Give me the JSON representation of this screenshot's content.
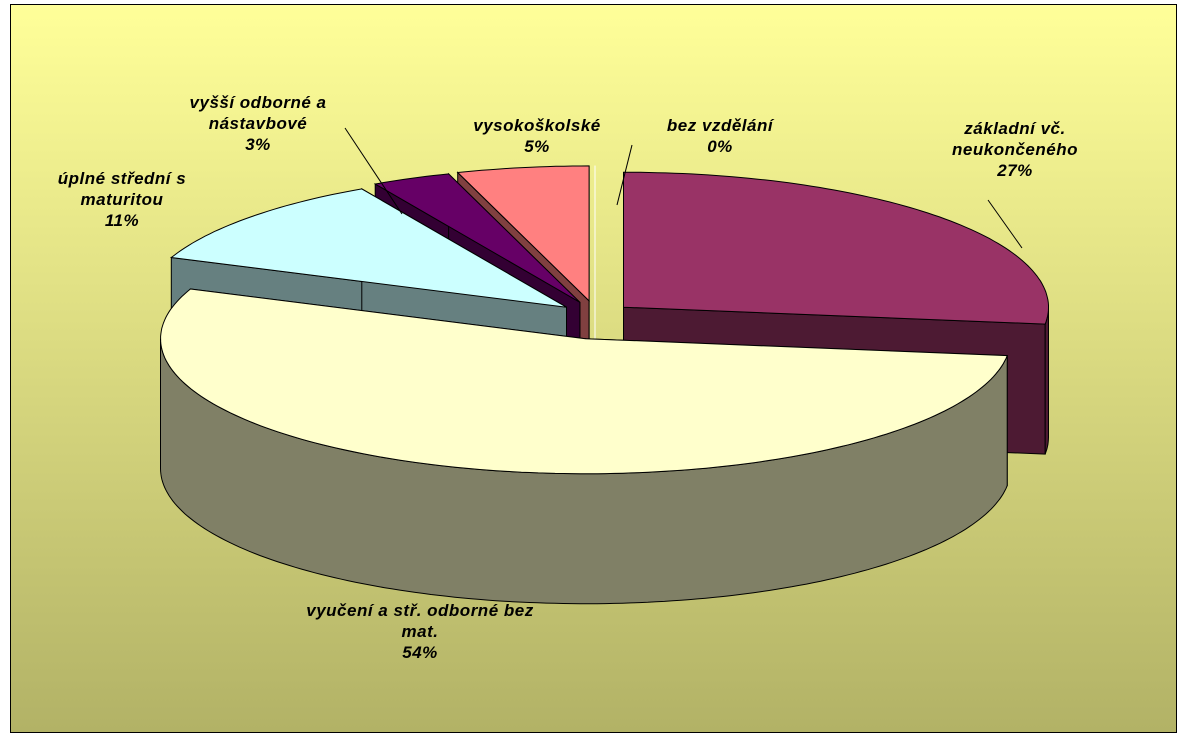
{
  "chart_data": {
    "type": "pie3d",
    "categories": [
      "základní vč. neukončeného",
      "vyučení a stř. odborné bez mat.",
      "úplné střední s maturitou",
      "vyšší odborné a nástavbové",
      "vysokoškolské",
      "bez vzdělání"
    ],
    "values": [
      27,
      54,
      11,
      3,
      5,
      0
    ],
    "value_labels": [
      "27%",
      "54%",
      "11%",
      "3%",
      "5%",
      "0%"
    ],
    "colors": [
      "#993366",
      "#ffffcc",
      "#ccffff",
      "#660066",
      "#ff8080",
      "#ffffff"
    ]
  }
}
